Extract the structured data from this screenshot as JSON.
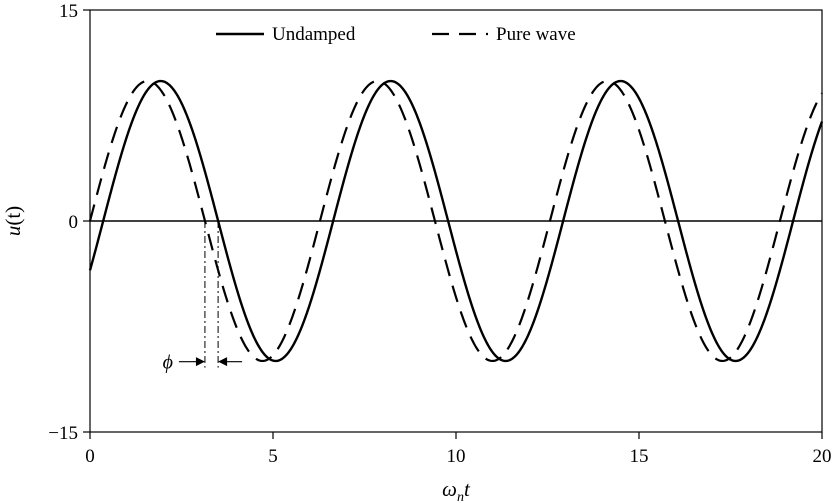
{
  "chart_data": {
    "type": "line",
    "title": "",
    "xlabel_main": "ω",
    "xlabel_sub": "n",
    "xlabel_tail": "t",
    "ylabel_main": "u",
    "ylabel_tail": "(t)",
    "xlim": [
      0,
      20
    ],
    "ylim": [
      -15,
      15
    ],
    "xticks": [
      0,
      5,
      10,
      15,
      20
    ],
    "yticks": [
      -15,
      0,
      15
    ],
    "xtick_labels": [
      "0",
      "5",
      "10",
      "15",
      "20"
    ],
    "ytick_labels": [
      "−15",
      "0",
      "15"
    ],
    "legend_position": "top-center",
    "grid": false,
    "series": [
      {
        "name": "Undamped",
        "style": "solid",
        "amplitude": 9.95,
        "omega_over_omega_n": 1.0,
        "phase": -0.36,
        "x_start": 0,
        "x_end": 20
      },
      {
        "name": "Pure wave",
        "style": "dashed",
        "amplitude": 9.95,
        "omega_over_omega_n": 1.0,
        "phase": 0,
        "x_start": 0,
        "x_end": 20
      }
    ],
    "annotation": {
      "label": "ϕ",
      "x1": 3.14,
      "x2": 3.5,
      "y": -10
    }
  }
}
